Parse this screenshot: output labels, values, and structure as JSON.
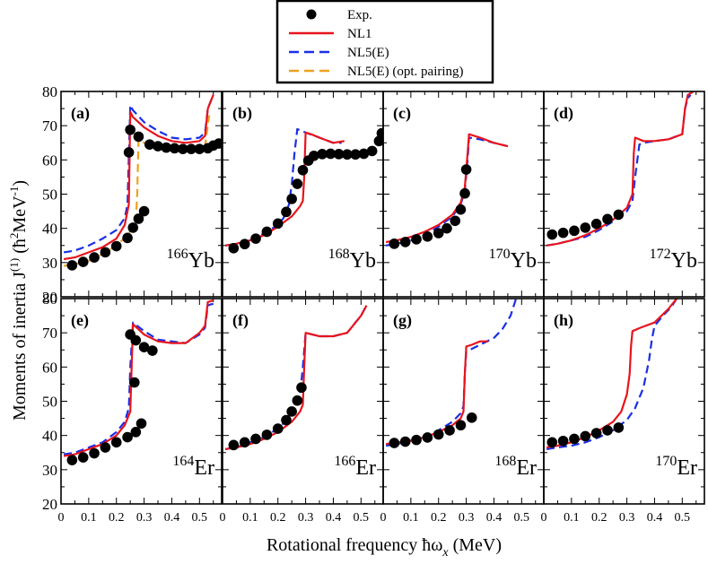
{
  "figure": {
    "xlabel": "Rotational  frequency  ħω",
    "xlabel_sub": "x",
    "xlabel_unit": " (MeV)",
    "ylabel_main": "Moments of inertia J",
    "ylabel_sup": "(1)",
    "ylabel_unit_open": " (ħ",
    "ylabel_unit_sup2": "2",
    "ylabel_unit_mev": "MeV",
    "ylabel_unit_sup3": "-1",
    "ylabel_unit_close": ")"
  },
  "legend": {
    "items": [
      {
        "label": "Exp.",
        "style": "marker",
        "color": "#000000"
      },
      {
        "label": "NL1",
        "style": "solid",
        "color": "#e8141c"
      },
      {
        "label": "NL5(E)",
        "style": "dashed",
        "color": "#1a2fe6"
      },
      {
        "label": "NL5(E) (opt. pairing)",
        "style": "dashed",
        "color": "#f0a020"
      }
    ]
  },
  "axes": {
    "x_ticks": [
      "0",
      "0.1",
      "0.2",
      "0.3",
      "0.4",
      "0.5"
    ],
    "x_tick_values": [
      0,
      0.1,
      0.2,
      0.3,
      0.4,
      0.5
    ],
    "y_ticks": [
      "20",
      "30",
      "40",
      "50",
      "60",
      "70",
      "80"
    ],
    "y_tick_values": [
      20,
      30,
      40,
      50,
      60,
      70,
      80
    ]
  },
  "chart_data": [
    {
      "type": "scatter",
      "panel": "(a)",
      "nucleus_mass": "166",
      "nucleus_symbol": "Yb",
      "xlim": [
        0,
        0.58
      ],
      "ylim": [
        20,
        80
      ],
      "exp": [
        [
          0.04,
          29.2
        ],
        [
          0.08,
          30.2
        ],
        [
          0.12,
          31.5
        ],
        [
          0.16,
          33
        ],
        [
          0.2,
          34.8
        ],
        [
          0.24,
          37.2
        ],
        [
          0.26,
          40.2
        ],
        [
          0.28,
          42.8
        ],
        [
          0.3,
          45
        ],
        [
          0.245,
          62.2
        ],
        [
          0.25,
          68.8
        ],
        [
          0.28,
          66.8
        ],
        [
          0.32,
          64.5
        ],
        [
          0.35,
          64
        ],
        [
          0.38,
          63.6
        ],
        [
          0.41,
          63.4
        ],
        [
          0.44,
          63.2
        ],
        [
          0.47,
          63.2
        ],
        [
          0.5,
          63.2
        ],
        [
          0.53,
          63.4
        ],
        [
          0.55,
          64.2
        ],
        [
          0.57,
          64.8
        ]
      ],
      "series": [
        {
          "name": "NL1",
          "x": [
            0.01,
            0.05,
            0.1,
            0.15,
            0.2,
            0.23,
            0.245,
            0.25,
            0.26,
            0.3,
            0.35,
            0.4,
            0.45,
            0.5,
            0.52,
            0.53,
            0.55
          ],
          "y": [
            31,
            31.5,
            33,
            34.5,
            37,
            41,
            47,
            74,
            72.5,
            69.5,
            67,
            65.5,
            65,
            65.5,
            67,
            75,
            79
          ]
        },
        {
          "name": "NL5(E)",
          "x": [
            0.01,
            0.05,
            0.1,
            0.15,
            0.2,
            0.23,
            0.24,
            0.25,
            0.26,
            0.3,
            0.35,
            0.4,
            0.45,
            0.5,
            0.52,
            0.53,
            0.55
          ],
          "y": [
            33,
            33.5,
            35,
            37,
            39.5,
            43,
            47,
            76,
            74.5,
            71,
            68.5,
            66.5,
            66,
            66.5,
            68,
            75,
            79
          ]
        },
        {
          "name": "NL5(E) (opt. pairing)",
          "x": [
            0.01,
            0.05,
            0.1,
            0.15,
            0.2,
            0.24,
            0.27,
            0.275,
            0.28,
            0.3,
            0.35,
            0.4,
            0.45,
            0.5,
            0.52,
            0.535
          ],
          "y": [
            29,
            29.5,
            30.5,
            32.5,
            35,
            38,
            41.5,
            50,
            66,
            65,
            64,
            63.5,
            63,
            63,
            64,
            73
          ]
        }
      ]
    },
    {
      "type": "scatter",
      "panel": "(b)",
      "nucleus_mass": "168",
      "nucleus_symbol": "Yb",
      "xlim": [
        0,
        0.58
      ],
      "ylim": [
        20,
        80
      ],
      "exp": [
        [
          0.04,
          34.2
        ],
        [
          0.08,
          35.4
        ],
        [
          0.12,
          37
        ],
        [
          0.16,
          39
        ],
        [
          0.2,
          41.4
        ],
        [
          0.23,
          44.8
        ],
        [
          0.25,
          48.6
        ],
        [
          0.27,
          53
        ],
        [
          0.29,
          57
        ],
        [
          0.31,
          59.8
        ],
        [
          0.33,
          61.2
        ],
        [
          0.36,
          61.7
        ],
        [
          0.39,
          61.8
        ],
        [
          0.42,
          61.7
        ],
        [
          0.45,
          61.6
        ],
        [
          0.48,
          61.6
        ],
        [
          0.51,
          61.8
        ],
        [
          0.54,
          62.6
        ],
        [
          0.565,
          65.5
        ],
        [
          0.575,
          67.8
        ]
      ],
      "series": [
        {
          "name": "NL1",
          "x": [
            0.01,
            0.05,
            0.1,
            0.15,
            0.2,
            0.25,
            0.28,
            0.29,
            0.295,
            0.3,
            0.32,
            0.35,
            0.4,
            0.44
          ],
          "y": [
            35,
            35.5,
            36.5,
            38,
            40.5,
            43.5,
            46.5,
            48,
            55,
            68,
            67.5,
            66.5,
            65,
            65.5
          ]
        },
        {
          "name": "NL5(E)",
          "x": [
            0.01,
            0.05,
            0.1,
            0.15,
            0.2,
            0.22,
            0.24,
            0.25,
            0.26,
            0.27,
            0.3,
            0.35,
            0.4,
            0.43
          ],
          "y": [
            35,
            35.5,
            36.5,
            38.5,
            41,
            43,
            47,
            53,
            62,
            69,
            68,
            66.5,
            65,
            65
          ]
        }
      ]
    },
    {
      "type": "scatter",
      "panel": "(c)",
      "nucleus_mass": "170",
      "nucleus_symbol": "Yb",
      "xlim": [
        0,
        0.58
      ],
      "ylim": [
        20,
        80
      ],
      "exp": [
        [
          0.04,
          35.5
        ],
        [
          0.08,
          36
        ],
        [
          0.12,
          36.8
        ],
        [
          0.16,
          37.6
        ],
        [
          0.2,
          38.6
        ],
        [
          0.23,
          40
        ],
        [
          0.26,
          42.2
        ],
        [
          0.28,
          45.5
        ],
        [
          0.295,
          50.2
        ],
        [
          0.3,
          57.2
        ]
      ],
      "series": [
        {
          "name": "NL1",
          "x": [
            0.01,
            0.05,
            0.1,
            0.15,
            0.2,
            0.25,
            0.28,
            0.295,
            0.305,
            0.31,
            0.35,
            0.4,
            0.45
          ],
          "y": [
            36,
            36.5,
            37.5,
            39,
            41,
            44,
            47.5,
            52,
            62,
            67.5,
            66.5,
            65,
            64
          ]
        },
        {
          "name": "NL5(E)",
          "x": [
            0.01,
            0.05,
            0.1,
            0.15,
            0.2,
            0.25,
            0.28,
            0.295,
            0.305,
            0.31,
            0.35,
            0.4,
            0.45
          ],
          "y": [
            35,
            35.5,
            36.5,
            38,
            40.5,
            43.5,
            47,
            51,
            60,
            66.5,
            66,
            65,
            64
          ]
        }
      ]
    },
    {
      "type": "scatter",
      "panel": "(d)",
      "nucleus_mass": "172",
      "nucleus_symbol": "Yb",
      "xlim": [
        0,
        0.58
      ],
      "ylim": [
        20,
        80
      ],
      "exp": [
        [
          0.03,
          38.2
        ],
        [
          0.07,
          38.7
        ],
        [
          0.11,
          39.3
        ],
        [
          0.15,
          40.2
        ],
        [
          0.19,
          41.3
        ],
        [
          0.23,
          42.7
        ],
        [
          0.27,
          44
        ]
      ],
      "series": [
        {
          "name": "NL1",
          "x": [
            0.01,
            0.05,
            0.1,
            0.15,
            0.2,
            0.25,
            0.3,
            0.32,
            0.325,
            0.33,
            0.36,
            0.4,
            0.45,
            0.5,
            0.51,
            0.52,
            0.54
          ],
          "y": [
            35,
            35.5,
            36.5,
            38,
            40,
            42.5,
            46,
            50,
            62,
            66.5,
            65.5,
            65.5,
            66,
            67.5,
            75,
            79,
            80
          ]
        },
        {
          "name": "NL5(E)",
          "x": [
            0.01,
            0.05,
            0.1,
            0.15,
            0.2,
            0.25,
            0.3,
            0.32,
            0.33,
            0.345,
            0.36,
            0.4,
            0.45,
            0.5,
            0.51,
            0.52,
            0.53
          ],
          "y": [
            35,
            35.5,
            36.5,
            37.5,
            39.5,
            42,
            45,
            48,
            55,
            64.5,
            65,
            65.5,
            66,
            67.5,
            75,
            78,
            79
          ]
        }
      ]
    },
    {
      "type": "scatter",
      "panel": "(e)",
      "nucleus_mass": "164",
      "nucleus_symbol": "Er",
      "xlim": [
        0,
        0.58
      ],
      "ylim": [
        20,
        80
      ],
      "exp": [
        [
          0.04,
          32.8
        ],
        [
          0.08,
          33.6
        ],
        [
          0.12,
          34.8
        ],
        [
          0.16,
          36.5
        ],
        [
          0.2,
          38
        ],
        [
          0.24,
          39.5
        ],
        [
          0.27,
          41
        ],
        [
          0.29,
          43.5
        ],
        [
          0.25,
          69.5
        ],
        [
          0.265,
          55.5
        ],
        [
          0.27,
          67.8
        ],
        [
          0.3,
          65.8
        ],
        [
          0.33,
          64.8
        ]
      ],
      "series": [
        {
          "name": "NL1",
          "x": [
            0.01,
            0.05,
            0.1,
            0.15,
            0.2,
            0.23,
            0.25,
            0.255,
            0.26,
            0.3,
            0.35,
            0.4,
            0.45,
            0.5,
            0.52,
            0.53,
            0.55
          ],
          "y": [
            34,
            34.5,
            36,
            37.5,
            40,
            43,
            47,
            60,
            72.5,
            69.5,
            67.5,
            67,
            67,
            70,
            72,
            79,
            79.5
          ]
        },
        {
          "name": "NL5(E)",
          "x": [
            0.01,
            0.05,
            0.1,
            0.15,
            0.2,
            0.23,
            0.245,
            0.25,
            0.26,
            0.3,
            0.35,
            0.4,
            0.45,
            0.5,
            0.52,
            0.53,
            0.55
          ],
          "y": [
            34.5,
            35,
            36.5,
            38,
            41,
            44,
            48,
            60,
            73,
            70.5,
            68,
            67.5,
            67,
            69.5,
            71.5,
            78,
            78.5
          ]
        }
      ]
    },
    {
      "type": "scatter",
      "panel": "(f)",
      "nucleus_mass": "166",
      "nucleus_symbol": "Er",
      "xlim": [
        0,
        0.58
      ],
      "ylim": [
        20,
        80
      ],
      "exp": [
        [
          0.04,
          37.2
        ],
        [
          0.08,
          38
        ],
        [
          0.12,
          39
        ],
        [
          0.16,
          40.2
        ],
        [
          0.2,
          42
        ],
        [
          0.23,
          44.5
        ],
        [
          0.25,
          47
        ],
        [
          0.27,
          50.2
        ],
        [
          0.285,
          54
        ]
      ],
      "series": [
        {
          "name": "NL1",
          "x": [
            0.01,
            0.05,
            0.1,
            0.15,
            0.2,
            0.25,
            0.28,
            0.29,
            0.295,
            0.3,
            0.35,
            0.4,
            0.45,
            0.5,
            0.52
          ],
          "y": [
            36,
            36.5,
            37.5,
            39,
            41,
            44,
            47,
            49,
            60,
            70,
            69,
            69,
            70,
            75,
            78
          ]
        },
        {
          "name": "NL5(E)",
          "x": [
            0.01,
            0.05,
            0.1,
            0.15,
            0.2,
            0.24,
            0.27,
            0.28,
            0.29,
            0.3,
            0.35,
            0.4,
            0.45,
            0.5,
            0.52
          ],
          "y": [
            36,
            36.5,
            38,
            39.5,
            42,
            45,
            48.5,
            52,
            60,
            70,
            69,
            69,
            70,
            75,
            78
          ]
        }
      ]
    },
    {
      "type": "scatter",
      "panel": "(g)",
      "nucleus_mass": "168",
      "nucleus_symbol": "Er",
      "xlim": [
        0,
        0.58
      ],
      "ylim": [
        20,
        80
      ],
      "exp": [
        [
          0.04,
          37.8
        ],
        [
          0.08,
          38.2
        ],
        [
          0.12,
          38.7
        ],
        [
          0.16,
          39.4
        ],
        [
          0.2,
          40.3
        ],
        [
          0.24,
          41.5
        ],
        [
          0.28,
          43
        ],
        [
          0.32,
          45.2
        ]
      ],
      "series": [
        {
          "name": "NL1",
          "x": [
            0.01,
            0.05,
            0.1,
            0.15,
            0.2,
            0.25,
            0.28,
            0.29,
            0.295,
            0.3,
            0.32,
            0.35,
            0.38
          ],
          "y": [
            37.5,
            38,
            38.5,
            39.5,
            41,
            43,
            45,
            47,
            58,
            66,
            66.5,
            67.5,
            67.5
          ]
        },
        {
          "name": "NL5(E)",
          "x": [
            0.01,
            0.05,
            0.1,
            0.15,
            0.2,
            0.25,
            0.28,
            0.29,
            0.295,
            0.3,
            0.35,
            0.4,
            0.43,
            0.46,
            0.48
          ],
          "y": [
            37,
            37.5,
            38.5,
            39.5,
            41.5,
            44,
            46.5,
            48.5,
            58,
            64.5,
            66.5,
            68.5,
            71,
            75,
            80
          ]
        }
      ]
    },
    {
      "type": "scatter",
      "panel": "(h)",
      "nucleus_mass": "170",
      "nucleus_symbol": "Er",
      "xlim": [
        0,
        0.58
      ],
      "ylim": [
        20,
        80
      ],
      "exp": [
        [
          0.03,
          38
        ],
        [
          0.07,
          38.4
        ],
        [
          0.11,
          39
        ],
        [
          0.15,
          39.8
        ],
        [
          0.19,
          40.7
        ],
        [
          0.23,
          41.5
        ],
        [
          0.27,
          42.3
        ]
      ],
      "series": [
        {
          "name": "NL1",
          "x": [
            0.01,
            0.05,
            0.1,
            0.15,
            0.2,
            0.25,
            0.28,
            0.3,
            0.31,
            0.315,
            0.32,
            0.35,
            0.4,
            0.45,
            0.48
          ],
          "y": [
            36.5,
            37,
            38,
            39.5,
            41.5,
            44,
            47,
            52,
            58,
            66,
            70.5,
            71.5,
            73,
            77,
            80
          ]
        },
        {
          "name": "NL5(E)",
          "x": [
            0.01,
            0.05,
            0.1,
            0.15,
            0.2,
            0.25,
            0.3,
            0.33,
            0.36,
            0.38,
            0.39,
            0.4,
            0.43,
            0.46,
            0.48
          ],
          "y": [
            36,
            36.5,
            37,
            38,
            39.5,
            41.5,
            44.5,
            48,
            54,
            62,
            68,
            72,
            75,
            77.5,
            80
          ]
        }
      ]
    }
  ]
}
